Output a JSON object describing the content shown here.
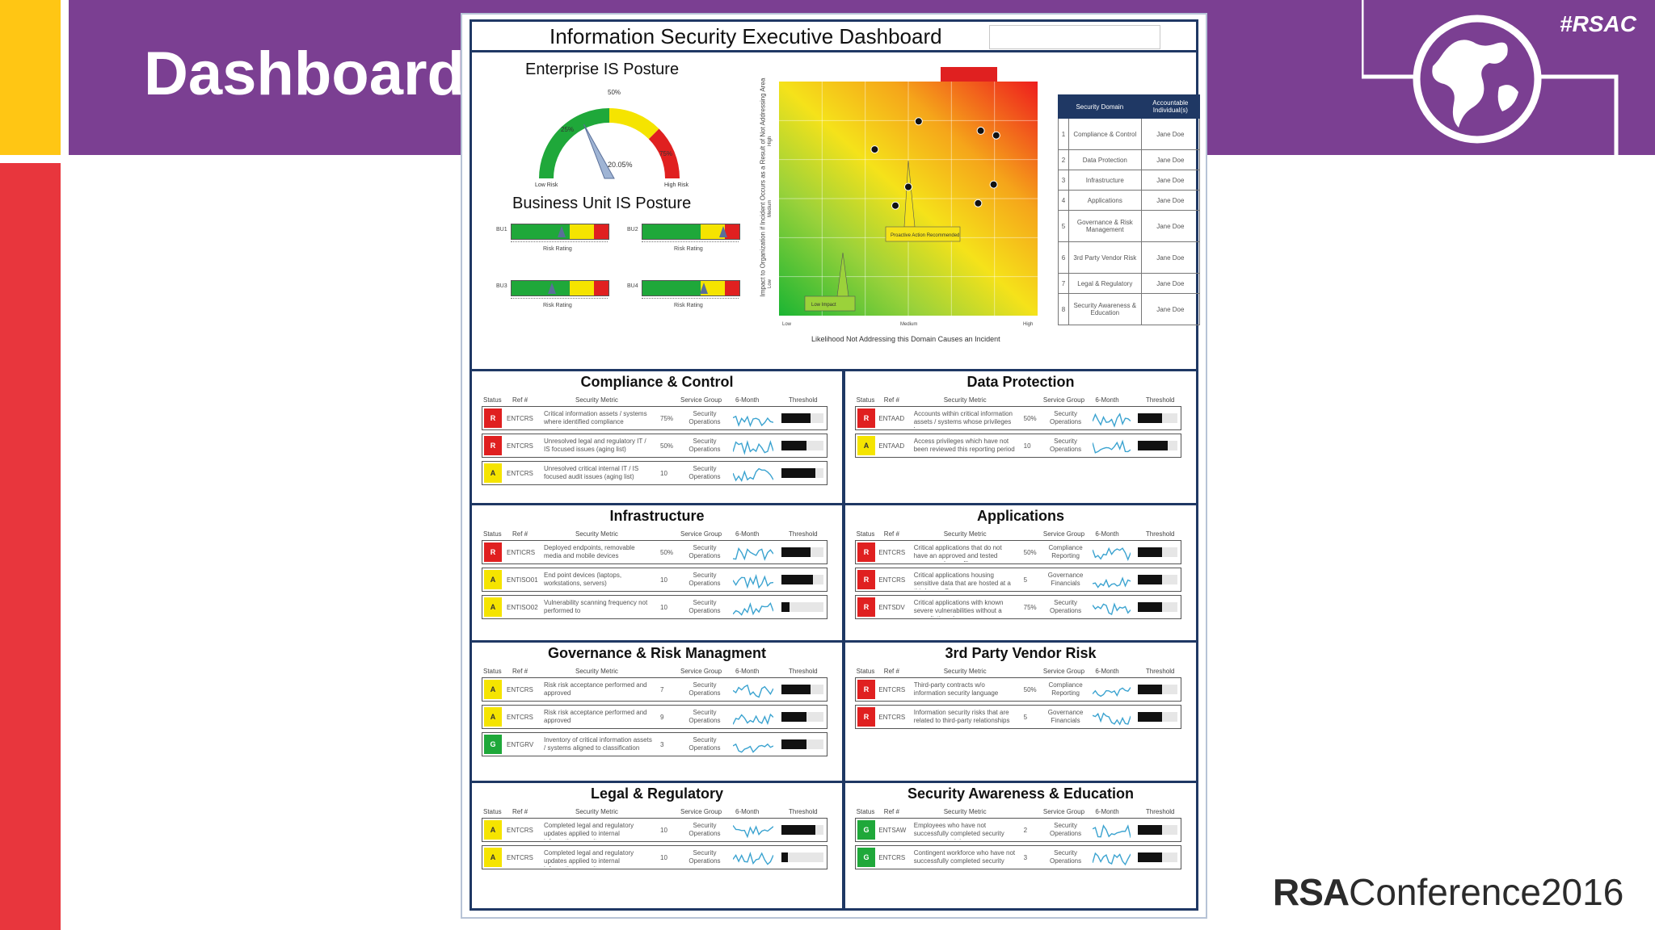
{
  "slide": {
    "title": "Dashboard",
    "hashtag": "#RSAC",
    "footer_logo_bold": "RSA",
    "footer_logo_text": "Conference2016"
  },
  "colors": {
    "purple": "#7B3F92",
    "yellow": "#FFC614",
    "red": "#E8363D",
    "navy": "#1F3864",
    "status_red": "#E02020",
    "status_yellow": "#F5E400",
    "status_green": "#1FA83A",
    "spark": "#3BA3D0"
  },
  "dashboard": {
    "title": "Information Security Executive Dashboard",
    "enterprise": {
      "title": "Enterprise IS Posture",
      "gauge_value": "20.05%",
      "gauge_fraction": 0.2005,
      "tick_0": "Low Risk",
      "tick_25": "25%",
      "tick_50": "50%",
      "tick_75": "75%",
      "tick_100": "High Risk"
    },
    "business_units": {
      "title": "Business Unit IS Posture",
      "axis_label": "Risk Rating",
      "units": [
        {
          "name": "BU1",
          "level": 0.52
        },
        {
          "name": "BU2",
          "level": 0.83
        },
        {
          "name": "BU3",
          "level": 0.42
        },
        {
          "name": "BU4",
          "level": 0.63
        }
      ]
    },
    "heatmap": {
      "ylabel": "Impact to Organization if Incident Occurs as a Result of Not Addressing Area",
      "xlabel": "Likelihood Not Addressing this Domain Causes an Incident",
      "y_ticks": [
        "High",
        "Medium",
        "Low"
      ],
      "x_ticks": [
        "Low",
        "Medium",
        "High"
      ],
      "callout_low": "Low Impact",
      "callout_mid": "Proactive Action Recommended",
      "points": [
        {
          "x": 0.54,
          "y": 0.83
        },
        {
          "x": 0.78,
          "y": 0.79
        },
        {
          "x": 0.84,
          "y": 0.77
        },
        {
          "x": 0.37,
          "y": 0.71
        },
        {
          "x": 0.5,
          "y": 0.55
        },
        {
          "x": 0.83,
          "y": 0.56
        },
        {
          "x": 0.45,
          "y": 0.47
        },
        {
          "x": 0.77,
          "y": 0.48
        }
      ]
    },
    "domains_table": {
      "col1": "Security Domain",
      "col2": "Accountable Individual(s)",
      "rows": [
        {
          "n": "1",
          "domain": "Compliance & Control",
          "owner": "Jane Doe"
        },
        {
          "n": "2",
          "domain": "Data Protection",
          "owner": "Jane Doe"
        },
        {
          "n": "3",
          "domain": "Infrastructure",
          "owner": "Jane Doe"
        },
        {
          "n": "4",
          "domain": "Applications",
          "owner": "Jane Doe"
        },
        {
          "n": "5",
          "domain": "Governance & Risk Management",
          "owner": "Jane Doe"
        },
        {
          "n": "6",
          "domain": "3rd Party Vendor Risk",
          "owner": "Jane Doe"
        },
        {
          "n": "7",
          "domain": "Legal & Regulatory",
          "owner": "Jane Doe"
        },
        {
          "n": "8",
          "domain": "Security Awareness & Education",
          "owner": "Jane Doe"
        }
      ]
    },
    "columns": {
      "status": "Status",
      "ref": "Ref #",
      "metric": "Security Metric",
      "group": "Service Group",
      "trend": "6-Month",
      "threshold": "Threshold"
    },
    "sections": [
      {
        "title": "Compliance & Control",
        "rows": [
          {
            "status": "R",
            "color": "#E02020",
            "ref": "ENTCRS",
            "metric": "Critical information assets / systems where identified compliance requirements",
            "value": "75%",
            "group": "Security Operations",
            "threshold": 0.7
          },
          {
            "status": "R",
            "color": "#E02020",
            "ref": "ENTCRS",
            "metric": "Unresolved legal and regulatory IT / IS focused issues (aging list)",
            "value": "50%",
            "group": "Security Operations",
            "threshold": 0.6
          },
          {
            "status": "A",
            "color": "#F5E400",
            "ref": "ENTCRS",
            "metric": "Unresolved critical internal IT / IS focused audit issues (aging list)",
            "value": "10",
            "group": "Security Operations",
            "threshold": 0.8
          }
        ]
      },
      {
        "title": "Data Protection",
        "rows": [
          {
            "status": "R",
            "color": "#E02020",
            "ref": "ENTAAD",
            "metric": "Accounts within critical information assets / systems whose privileges have",
            "value": "50%",
            "group": "Security Operations",
            "threshold": 0.6
          },
          {
            "status": "A",
            "color": "#F5E400",
            "ref": "ENTAAD",
            "metric": "Access privileges which have not been reviewed this reporting period",
            "value": "10",
            "group": "Security Operations",
            "threshold": 0.75
          }
        ]
      },
      {
        "title": "Infrastructure",
        "rows": [
          {
            "status": "R",
            "color": "#E02020",
            "ref": "ENTICRS",
            "metric": "Deployed endpoints, removable media and mobile devices",
            "value": "50%",
            "group": "Security Operations",
            "threshold": 0.7
          },
          {
            "status": "A",
            "color": "#F5E400",
            "ref": "ENTISO01",
            "metric": "End point devices (laptops, workstations, servers)",
            "value": "10",
            "group": "Security Operations",
            "threshold": 0.75
          },
          {
            "status": "A",
            "color": "#F5E400",
            "ref": "ENTISO02",
            "metric": "Vulnerability scanning frequency not performed to",
            "value": "10",
            "group": "Security Operations",
            "threshold": 0.2
          }
        ]
      },
      {
        "title": "Applications",
        "rows": [
          {
            "status": "R",
            "color": "#E02020",
            "ref": "ENTCRS",
            "metric": "Critical applications that do not have an approved and tested recovery plan on file",
            "value": "50%",
            "group": "Compliance Reporting",
            "threshold": 0.6
          },
          {
            "status": "R",
            "color": "#E02020",
            "ref": "ENTCRS",
            "metric": "Critical applications housing sensitive data that are hosted at a third party Org",
            "value": "5",
            "group": "Governance Financials",
            "threshold": 0.6
          },
          {
            "status": "R",
            "color": "#E02020",
            "ref": "ENTSDV",
            "metric": "Critical applications with known severe vulnerabilities without a remediation plan",
            "value": "75%",
            "group": "Security Operations",
            "threshold": 0.6
          }
        ]
      },
      {
        "title": "Governance & Risk Managment",
        "rows": [
          {
            "status": "A",
            "color": "#F5E400",
            "ref": "ENTCRS",
            "metric": "Risk risk acceptance performed and approved",
            "value": "7",
            "group": "Security Operations",
            "threshold": 0.7
          },
          {
            "status": "A",
            "color": "#F5E400",
            "ref": "ENTCRS",
            "metric": "Risk risk acceptance performed and approved",
            "value": "9",
            "group": "Security Operations",
            "threshold": 0.6
          },
          {
            "status": "G",
            "color": "#1FA83A",
            "ref": "ENTGRV",
            "metric": "Inventory of critical information assets / systems aligned to classification",
            "value": "3",
            "group": "Security Operations",
            "threshold": 0.6
          }
        ]
      },
      {
        "title": "3rd Party Vendor Risk",
        "title_sup": "rd",
        "rows": [
          {
            "status": "R",
            "color": "#E02020",
            "ref": "ENTCRS",
            "metric": "Third-party contracts w/o information security language",
            "value": "50%",
            "group": "Compliance Reporting",
            "threshold": 0.6
          },
          {
            "status": "R",
            "color": "#E02020",
            "ref": "ENTCRS",
            "metric": "Information security risks that are related to third-party relationships",
            "value": "5",
            "group": "Governance Financials",
            "threshold": 0.6
          }
        ]
      },
      {
        "title": "Legal & Regulatory",
        "rows": [
          {
            "status": "A",
            "color": "#F5E400",
            "ref": "ENTCRS",
            "metric": "Completed legal and regulatory updates applied to internal information security",
            "value": "10",
            "group": "Security Operations",
            "threshold": 0.8
          },
          {
            "status": "A",
            "color": "#F5E400",
            "ref": "ENTCRS",
            "metric": "Completed legal and regulatory updates applied to internal information security",
            "value": "10",
            "group": "Security Operations",
            "threshold": 0.15
          }
        ]
      },
      {
        "title": "Security Awareness & Education",
        "rows": [
          {
            "status": "G",
            "color": "#1FA83A",
            "ref": "ENTSAW",
            "metric": "Employees who have not successfully completed security awareness training",
            "value": "2",
            "group": "Security Operations",
            "threshold": 0.6
          },
          {
            "status": "G",
            "color": "#1FA83A",
            "ref": "ENTCRS",
            "metric": "Contingent workforce who have not successfully completed security",
            "value": "3",
            "group": "Security Operations",
            "threshold": 0.6
          }
        ]
      }
    ]
  }
}
